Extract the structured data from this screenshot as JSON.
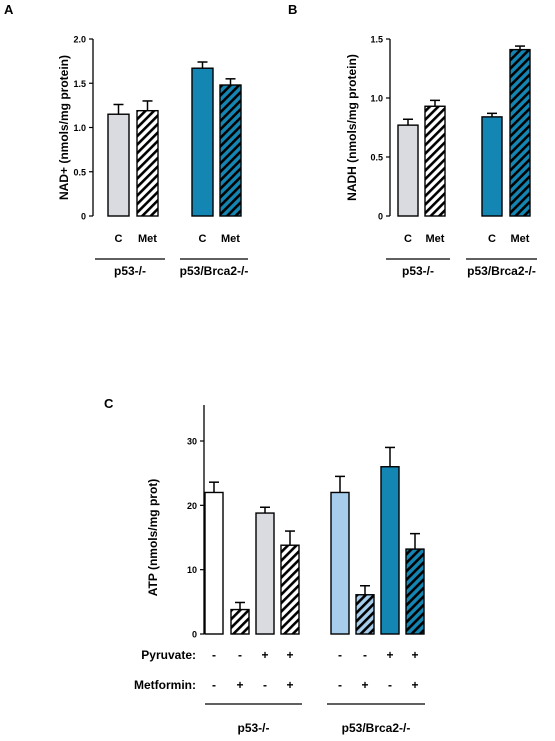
{
  "colors": {
    "light_gray": "#d9dbe0",
    "teal": "#1486b3",
    "light_blue": "#a7cdec",
    "white": "#ffffff",
    "black": "#000000"
  },
  "chart_data": [
    {
      "panel": "A",
      "type": "bar",
      "categories": [
        "C",
        "Met",
        "C",
        "Met"
      ],
      "values": [
        1.15,
        1.19,
        1.67,
        1.48
      ],
      "errors": [
        0.11,
        0.11,
        0.07,
        0.07
      ],
      "bar_colors": [
        "light_gray",
        "light_gray",
        "teal",
        "teal"
      ],
      "hatched": [
        false,
        true,
        false,
        true
      ],
      "groups": [
        {
          "label": "p53-/-",
          "indices": [
            0,
            1
          ]
        },
        {
          "label": "p53/Brca2-/-",
          "indices": [
            2,
            3
          ]
        }
      ],
      "ylabel": "NAD+ (nmols/mg protein)",
      "ylim": [
        0,
        2.0
      ],
      "yticks": [
        "0",
        "0.5",
        "1.0",
        "1.5",
        "2.0"
      ],
      "ytick_values": [
        0,
        0.5,
        1.0,
        1.5,
        2.0
      ]
    },
    {
      "panel": "B",
      "type": "bar",
      "categories": [
        "C",
        "Met",
        "C",
        "Met"
      ],
      "values": [
        0.77,
        0.93,
        0.84,
        1.41
      ],
      "errors": [
        0.05,
        0.05,
        0.03,
        0.03
      ],
      "bar_colors": [
        "light_gray",
        "light_gray",
        "teal",
        "teal"
      ],
      "hatched": [
        false,
        true,
        false,
        true
      ],
      "groups": [
        {
          "label": "p53-/-",
          "indices": [
            0,
            1
          ]
        },
        {
          "label": "p53/Brca2-/-",
          "indices": [
            2,
            3
          ]
        }
      ],
      "ylabel": "NADH (nmols/mg protein)",
      "ylim": [
        0,
        1.5
      ],
      "yticks": [
        "0",
        "0.5",
        "1.0",
        "1.5"
      ],
      "ytick_values": [
        0,
        0.5,
        1.0,
        1.5
      ]
    },
    {
      "panel": "C",
      "type": "bar",
      "values": [
        22.0,
        3.8,
        18.8,
        13.8,
        22.0,
        6.1,
        26.0,
        13.2
      ],
      "errors": [
        1.6,
        1.1,
        0.9,
        2.2,
        2.5,
        1.4,
        3.0,
        2.4
      ],
      "bar_colors": [
        "white",
        "white",
        "light_gray",
        "light_gray",
        "light_blue",
        "light_blue",
        "teal",
        "teal"
      ],
      "hatched": [
        false,
        true,
        false,
        true,
        false,
        true,
        false,
        true
      ],
      "rows": [
        {
          "label": "Pyruvate:",
          "signs": [
            "-",
            "-",
            "+",
            "+",
            "-",
            "-",
            "+",
            "+"
          ]
        },
        {
          "label": "Metformin:",
          "signs": [
            "-",
            "+",
            "-",
            "+",
            "-",
            "+",
            "-",
            "+"
          ]
        }
      ],
      "groups": [
        {
          "label": "p53-/-",
          "indices": [
            0,
            3
          ]
        },
        {
          "label": "p53/Brca2-/-",
          "indices": [
            4,
            7
          ]
        }
      ],
      "ylabel": "ATP (nmols/mg prot)",
      "ylim": [
        0,
        30
      ],
      "yticks": [
        "0",
        "10",
        "20",
        "30"
      ],
      "ytick_values": [
        0,
        10,
        20,
        30
      ]
    }
  ]
}
